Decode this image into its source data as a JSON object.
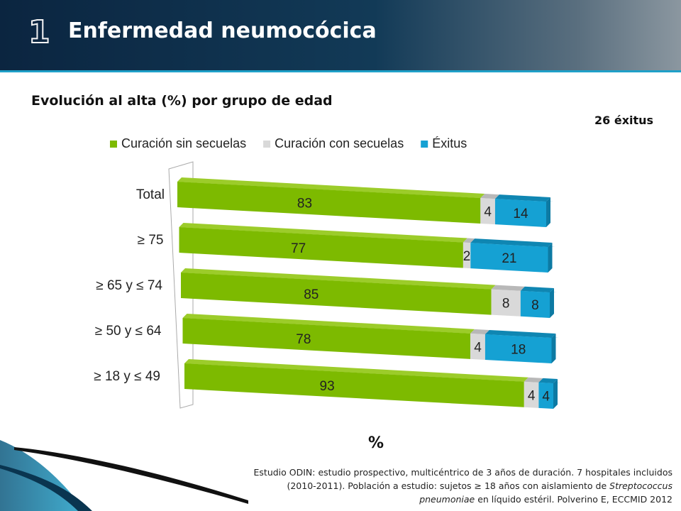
{
  "header": {
    "number": "1",
    "title": "Enfermedad neumocócica"
  },
  "subtitle": "Evolución al alta (%) por grupo de edad",
  "exitus_note": "26 éxitus",
  "colors": {
    "curacion_sin": "#7dba00",
    "curacion_con": "#d9d9d9",
    "exitus": "#15a1d3",
    "header": "#0b2540"
  },
  "chart_data": {
    "type": "bar",
    "orientation": "horizontal",
    "stacked": true,
    "categories": [
      "Total",
      "≥ 75",
      "≥ 65 y ≤ 74",
      "≥ 50 y ≤ 64",
      "≥ 18 y ≤ 49"
    ],
    "series": [
      {
        "name": "Curación sin secuelas",
        "values": [
          83,
          77,
          85,
          78,
          93
        ]
      },
      {
        "name": "Curación con secuelas",
        "values": [
          4,
          2,
          8,
          4,
          4
        ]
      },
      {
        "name": "Éxitus",
        "values": [
          14,
          21,
          8,
          18,
          4
        ]
      }
    ],
    "xlabel": "%",
    "legend_position": "top"
  },
  "footnote": {
    "part1": "Estudio ODIN: estudio prospectivo, multicéntrico de 3 años de duración. 7 hospitales incluidos (2010-2011). Población  a estudio: sujetos ≥ 18 años con aislamiento de ",
    "species": "Streptococcus pneumoniae",
    "part2": " en líquido estéril. Polverino E, ECCMID 2012"
  }
}
